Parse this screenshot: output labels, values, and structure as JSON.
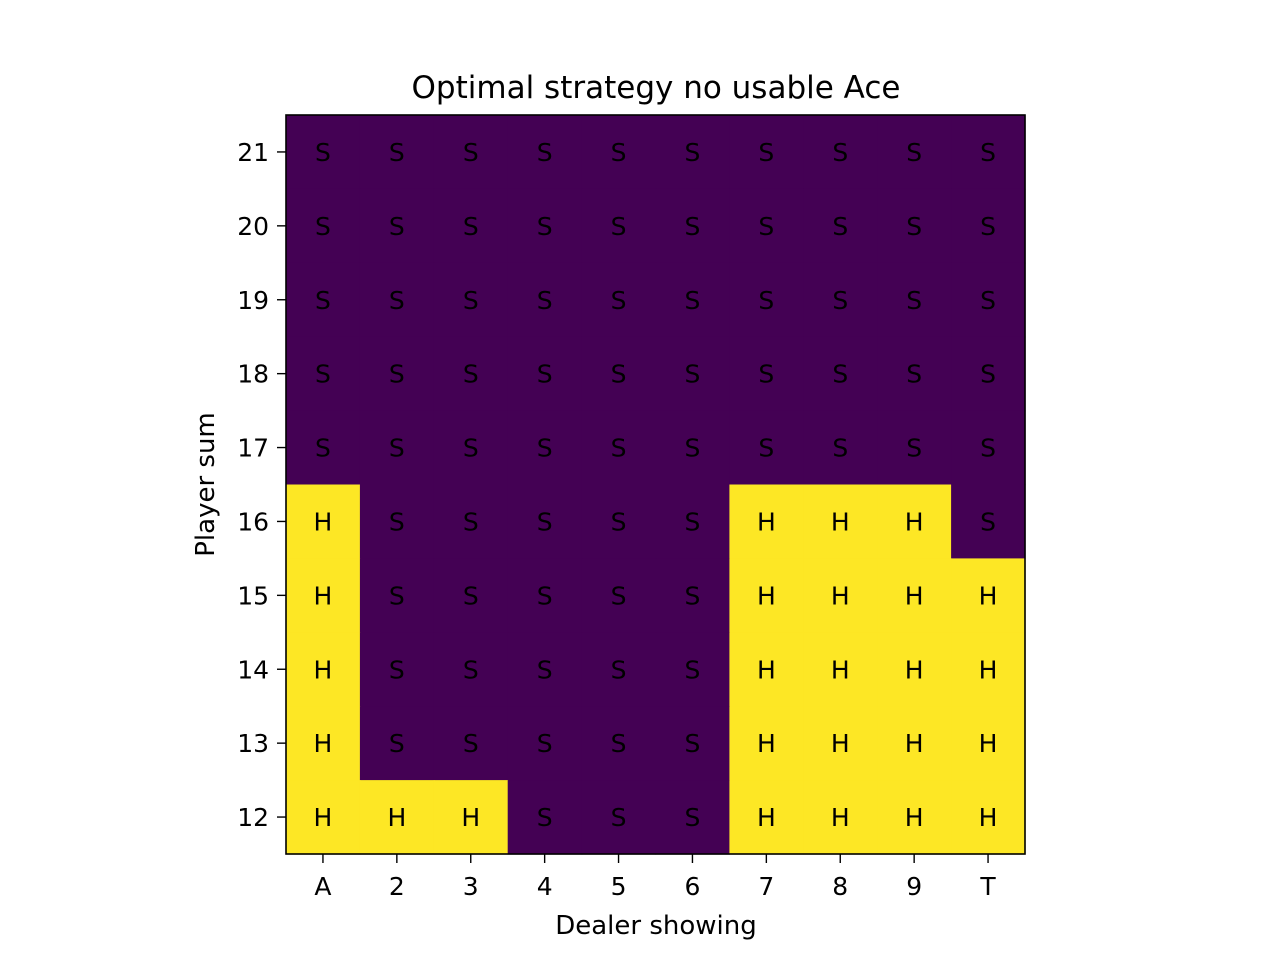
{
  "chart_data": {
    "type": "heatmap",
    "title": "Optimal strategy no usable Ace",
    "xlabel": "Dealer showing",
    "ylabel": "Player sum",
    "x_categories": [
      "A",
      "2",
      "3",
      "4",
      "5",
      "6",
      "7",
      "8",
      "9",
      "T"
    ],
    "y_categories": [
      "21",
      "20",
      "19",
      "18",
      "17",
      "16",
      "15",
      "14",
      "13",
      "12"
    ],
    "cells": [
      [
        "S",
        "S",
        "S",
        "S",
        "S",
        "S",
        "S",
        "S",
        "S",
        "S"
      ],
      [
        "S",
        "S",
        "S",
        "S",
        "S",
        "S",
        "S",
        "S",
        "S",
        "S"
      ],
      [
        "S",
        "S",
        "S",
        "S",
        "S",
        "S",
        "S",
        "S",
        "S",
        "S"
      ],
      [
        "S",
        "S",
        "S",
        "S",
        "S",
        "S",
        "S",
        "S",
        "S",
        "S"
      ],
      [
        "S",
        "S",
        "S",
        "S",
        "S",
        "S",
        "S",
        "S",
        "S",
        "S"
      ],
      [
        "H",
        "S",
        "S",
        "S",
        "S",
        "S",
        "H",
        "H",
        "H",
        "S"
      ],
      [
        "H",
        "S",
        "S",
        "S",
        "S",
        "S",
        "H",
        "H",
        "H",
        "H"
      ],
      [
        "H",
        "S",
        "S",
        "S",
        "S",
        "S",
        "H",
        "H",
        "H",
        "H"
      ],
      [
        "H",
        "S",
        "S",
        "S",
        "S",
        "S",
        "H",
        "H",
        "H",
        "H"
      ],
      [
        "H",
        "H",
        "H",
        "S",
        "S",
        "S",
        "H",
        "H",
        "H",
        "H"
      ]
    ],
    "colors": {
      "S": "#440154",
      "H": "#fde725"
    },
    "legend": "none",
    "grid": false
  }
}
